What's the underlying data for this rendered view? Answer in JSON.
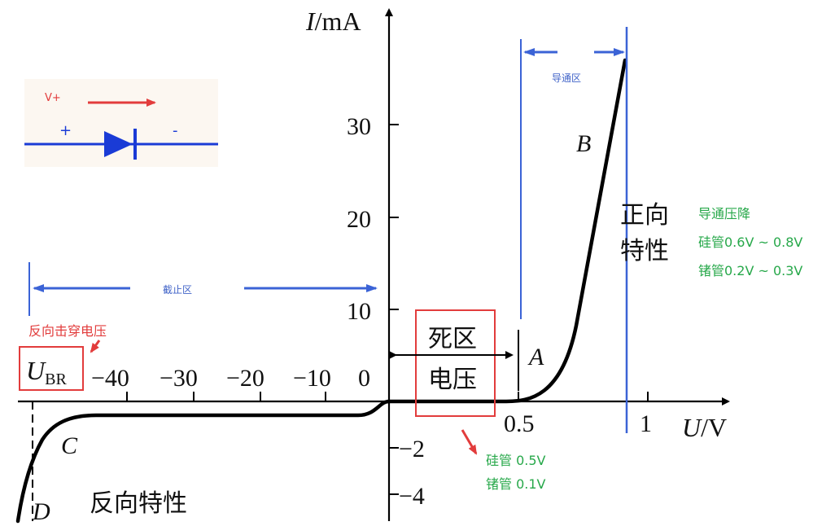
{
  "inset": {
    "voltage_label": "V+",
    "plus_label": "+",
    "minus_label": "-",
    "arrow_color": "#e23c3c",
    "diode_color": "#1a3bd6"
  },
  "axes": {
    "y_title_var": "I",
    "y_title_unit": "/mA",
    "x_title_var": "U",
    "x_title_unit": "/V",
    "origin_label": "0",
    "y_ticks_pos": [
      "10",
      "20",
      "30"
    ],
    "y_ticks_neg": [
      "−2",
      "−4"
    ],
    "x_ticks_neg": [
      "−10",
      "−20",
      "−30",
      "−40"
    ],
    "x_ticks_pos": [
      "0.5",
      "1"
    ]
  },
  "points": {
    "A": "A",
    "B": "B",
    "C": "C",
    "D": "D"
  },
  "regions": {
    "conduction": "导通区",
    "cutoff": "截止区",
    "forward_line1": "正向",
    "forward_line2": "特性",
    "reverse": "反向特性",
    "dead_zone_line1": "死区",
    "dead_zone_line2": "电压"
  },
  "notes": {
    "turn_on_title": "导通压降",
    "si_turn_on": "硅管0.6V ~ 0.8V",
    "ge_turn_on": "锗管0.2V ~ 0.3V",
    "breakdown": "反向击穿电压",
    "ubr_main": "U",
    "ubr_sub": "BR",
    "si_dead": "硅管 0.5V",
    "ge_dead": "锗管 0.1V"
  },
  "colors": {
    "curve": "#000000",
    "annotation_blue": "#3b63d6",
    "annotation_red": "#e23c3c",
    "annotation_green": "#27a84a"
  }
}
